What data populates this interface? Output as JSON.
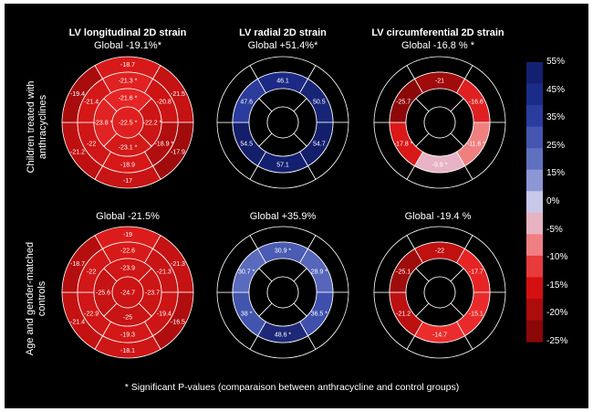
{
  "columns": [
    {
      "title": "LV longitudinal 2D strain"
    },
    {
      "title": "LV radial 2D strain"
    },
    {
      "title": "LV circumferential 2D strain"
    }
  ],
  "rows": [
    {
      "label_lines": [
        "Children treated with",
        "anthracyclines"
      ]
    },
    {
      "label_lines": [
        "Age and gender-matched",
        "controls"
      ]
    }
  ],
  "globals": [
    [
      "Global -19.1%*",
      "Global +51.4%*",
      "Global -16.8 % *"
    ],
    [
      "Global -21.5%",
      "Global +35.9%",
      "Global -19.4 %"
    ]
  ],
  "colorbar": {
    "labels": [
      "55%",
      "45%",
      "35%",
      "25%",
      "15%",
      "0%",
      "-5%",
      "-10%",
      "-15%",
      "-20%",
      "-25%"
    ],
    "colors": [
      "#132070",
      "#1b2c88",
      "#2a3d9e",
      "#4456b0",
      "#6070c0",
      "#8d97d6",
      "#c8c8ea",
      "#e8b3c0",
      "#f07f84",
      "#e83a3a",
      "#d41010",
      "#ad0c0c",
      "#8c0808"
    ]
  },
  "footnote": "* Significant P-values (comparaison between anthracycline and control groups)",
  "bullseyes": [
    {
      "name": "longitudinal-anthracycline",
      "values": {
        "outer": [
          "-18.7",
          "-21.5",
          "-17.9",
          "-17",
          "-21.2",
          "-19.4"
        ],
        "mid": [
          "-21.3",
          "-20.8",
          "-18.9",
          "-18.9",
          "-22",
          "-21.4"
        ],
        "apical": [
          "-21.6",
          "-22.2",
          "-23.1",
          "-23.8"
        ],
        "apex": "-22.5"
      },
      "significant": {
        "mid": [
          0,
          2
        ],
        "apical": [
          0,
          1,
          2,
          3
        ],
        "apex": true
      },
      "colors": {
        "outer": [
          "#d81919",
          "#c51212",
          "#a00c0c",
          "#c81414",
          "#be1010",
          "#a80c0c"
        ],
        "mid": [
          "#e02121",
          "#cd1313",
          "#b10f0f",
          "#d61818",
          "#d01616",
          "#d41717"
        ],
        "apical": [
          "#e52525",
          "#cc1515",
          "#d41919",
          "#e02323"
        ],
        "apex": "#e02020"
      }
    },
    {
      "name": "radial-anthracycline",
      "values": {
        "outer": [
          "",
          "",
          "",
          "",
          "",
          ""
        ],
        "mid": [
          "46.1",
          "50.5",
          "54.7",
          "57.1",
          "54.5",
          "47.6"
        ],
        "apical": [
          "",
          "",
          "",
          ""
        ],
        "apex": ""
      },
      "significant": {
        "mid": [],
        "apical": [],
        "apex": false
      },
      "colors": {
        "outer": [
          "#000000",
          "#000000",
          "#000000",
          "#000000",
          "#000000",
          "#000000"
        ],
        "mid": [
          "#1c2a86",
          "#182577",
          "#141f6c",
          "#132070",
          "#141f6c",
          "#2b3c9d"
        ],
        "apical": [
          "#000000",
          "#000000",
          "#000000",
          "#000000"
        ],
        "apex": "#000000"
      }
    },
    {
      "name": "circumferential-anthracycline",
      "values": {
        "outer": [
          "",
          "",
          "",
          "",
          "",
          ""
        ],
        "mid": [
          "-21",
          "-16.6",
          "-11.6",
          "-9.9",
          "-17.8",
          "-25.7"
        ],
        "apical": [
          "",
          "",
          "",
          ""
        ],
        "apex": ""
      },
      "significant": {
        "mid": [
          2,
          3,
          4
        ],
        "apical": [],
        "apex": false
      },
      "colors": {
        "outer": [
          "#000000",
          "#000000",
          "#000000",
          "#000000",
          "#000000",
          "#000000"
        ],
        "mid": [
          "#a10b0b",
          "#e02020",
          "#f08080",
          "#e8b3c4",
          "#da1818",
          "#8c0808"
        ],
        "apical": [
          "#000000",
          "#000000",
          "#000000",
          "#000000"
        ],
        "apex": "#000000"
      }
    },
    {
      "name": "longitudinal-control",
      "values": {
        "outer": [
          "-19",
          "-21.3",
          "-16.5",
          "-18.1",
          "-21.4",
          "-18.7"
        ],
        "mid": [
          "-22.6",
          "-21.3",
          "-19.4",
          "-19.3",
          "-22.9",
          "-22"
        ],
        "apical": [
          "-23.9",
          "-23.7",
          "-25",
          "-25.6"
        ],
        "apex": "-24.7"
      },
      "significant": {
        "mid": [],
        "apical": [],
        "apex": false
      },
      "colors": {
        "outer": [
          "#dc1c1c",
          "#c51212",
          "#b00e0e",
          "#cf1616",
          "#c41212",
          "#b50e0e"
        ],
        "mid": [
          "#d81919",
          "#c81414",
          "#cd1515",
          "#d41818",
          "#d01616",
          "#d21717"
        ],
        "apical": [
          "#d01616",
          "#cc1515",
          "#c81414",
          "#c61313"
        ],
        "apex": "#cc1414"
      }
    },
    {
      "name": "radial-control",
      "values": {
        "outer": [
          "",
          "",
          "",
          "",
          "",
          ""
        ],
        "mid": [
          "30.9",
          "28.9",
          "36.5",
          "48.6",
          "38",
          "30.7"
        ],
        "apical": [
          "",
          "",
          "",
          ""
        ],
        "apex": ""
      },
      "significant": {
        "mid": [
          0,
          1,
          2,
          3,
          4,
          5
        ],
        "apical": [],
        "apex": false
      },
      "colors": {
        "outer": [
          "#000000",
          "#000000",
          "#000000",
          "#000000",
          "#000000",
          "#000000"
        ],
        "mid": [
          "#4a5bb3",
          "#5566bb",
          "#3e50ac",
          "#1d2878",
          "#4255ae",
          "#5a6bbe"
        ],
        "apical": [
          "#000000",
          "#000000",
          "#000000",
          "#000000"
        ],
        "apex": "#000000"
      }
    },
    {
      "name": "circumferential-control",
      "values": {
        "outer": [
          "",
          "",
          "",
          "",
          "",
          ""
        ],
        "mid": [
          "-22",
          "-17.7",
          "-15.1",
          "-14.7",
          "-21.2",
          "-25.1"
        ],
        "apical": [
          "",
          "",
          "",
          ""
        ],
        "apex": ""
      },
      "significant": {
        "mid": [],
        "apical": [],
        "apex": false
      },
      "colors": {
        "outer": [
          "#000000",
          "#000000",
          "#000000",
          "#000000",
          "#000000",
          "#000000"
        ],
        "mid": [
          "#c01111",
          "#e62424",
          "#ea2a2a",
          "#ec2c2c",
          "#bd1111",
          "#a00c0c"
        ],
        "apical": [
          "#000000",
          "#000000",
          "#000000",
          "#000000"
        ],
        "apex": "#000000"
      }
    }
  ]
}
